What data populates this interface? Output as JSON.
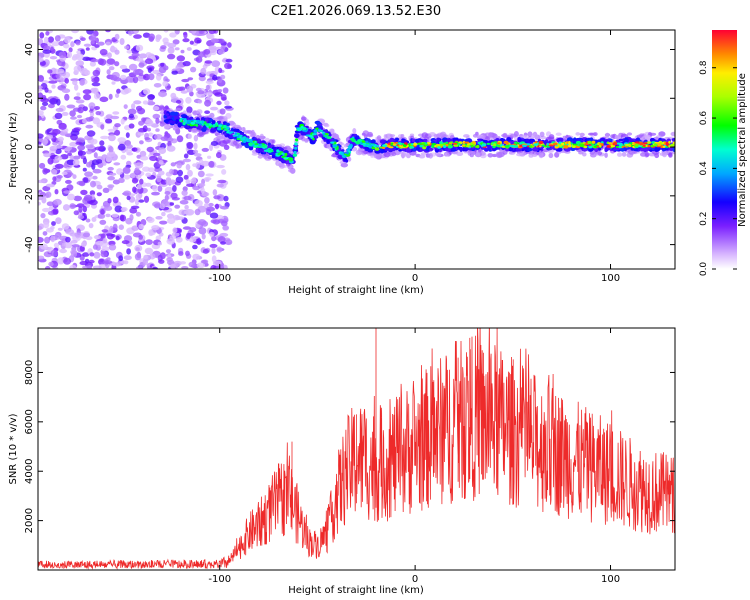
{
  "title": "C2E1.2026.069.13.52.E30",
  "chart_data": [
    {
      "type": "heatmap",
      "xlabel": "Height of straight line (km)",
      "ylabel": "Frequency (Hz)",
      "xlim": [
        -193,
        133
      ],
      "ylim": [
        -50,
        48
      ],
      "xticks": [
        -100,
        0,
        100
      ],
      "yticks": [
        -40,
        -20,
        0,
        20,
        40
      ],
      "ridge": {
        "x": [
          -125,
          -115,
          -105,
          -98,
          -92,
          -85,
          -78,
          -72,
          -66,
          -62,
          -60,
          -58,
          -55,
          -52,
          -50,
          -46,
          -42,
          -38,
          -35,
          -32,
          -28,
          -24,
          -20,
          -10,
          0,
          20,
          40,
          60,
          80,
          100,
          120,
          133
        ],
        "y": [
          12,
          10,
          9,
          8,
          5,
          2,
          0,
          -2,
          -4,
          -6,
          7,
          8,
          6,
          4,
          8,
          5,
          2,
          -3,
          -4,
          3,
          2,
          1,
          0,
          1,
          0.5,
          1,
          1,
          1,
          1,
          1,
          1,
          1
        ]
      },
      "colorbar": {
        "label": "Normalized spectral amplitude",
        "range": [
          0,
          0.95
        ],
        "ticks": [
          0.0,
          0.2,
          0.4,
          0.6,
          0.8
        ]
      }
    },
    {
      "type": "line",
      "xlabel": "Height of straight line (km)",
      "ylabel": "SNR (10 * v/v)",
      "xlim": [
        -193,
        133
      ],
      "ylim": [
        0,
        9800
      ],
      "xticks": [
        -100,
        0,
        100
      ],
      "yticks": [
        2000,
        4000,
        6000,
        8000
      ],
      "color": "#ee2a2a",
      "envelope": {
        "x": [
          -193,
          -100,
          -95,
          -90,
          -85,
          -80,
          -75,
          -70,
          -65,
          -60,
          -55,
          -50,
          -45,
          -40,
          -35,
          -30,
          -25,
          -20,
          -15,
          -10,
          -5,
          0,
          10,
          20,
          30,
          40,
          50,
          60,
          70,
          80,
          90,
          100,
          110,
          120,
          133
        ],
        "y": [
          200,
          220,
          350,
          900,
          1500,
          1800,
          2300,
          2800,
          3100,
          2200,
          1200,
          1000,
          1500,
          3000,
          4000,
          4500,
          4400,
          4200,
          4300,
          4500,
          4800,
          5000,
          5500,
          5900,
          6200,
          6000,
          5600,
          5200,
          4900,
          4500,
          4200,
          3900,
          3500,
          3200,
          3000
        ]
      },
      "spikes": [
        {
          "x": -20,
          "y": 9800
        },
        {
          "x": 28,
          "y": 9400
        },
        {
          "x": 35,
          "y": 8800
        },
        {
          "x": 22,
          "y": 8600
        },
        {
          "x": -63,
          "y": 5200
        },
        {
          "x": -30,
          "y": 6300
        }
      ]
    }
  ]
}
